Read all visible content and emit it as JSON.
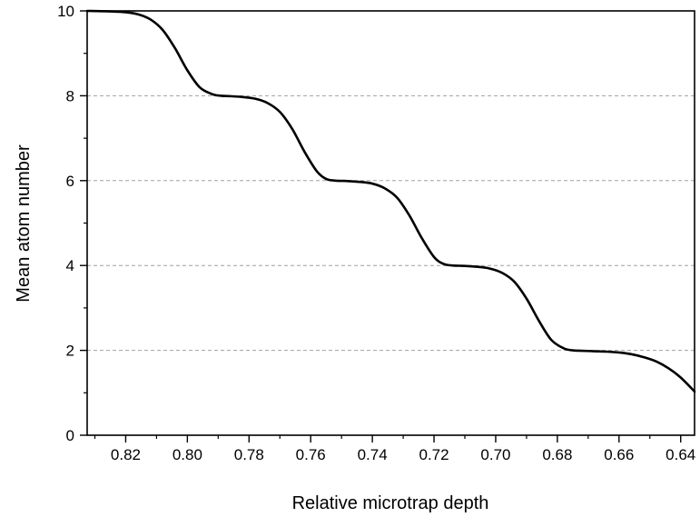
{
  "chart_data": {
    "type": "line",
    "xlabel": "Relative microtrap depth",
    "ylabel": "Mean atom number",
    "xlim": [
      0.8325,
      0.6355
    ],
    "ylim": [
      0,
      10
    ],
    "x_reversed": true,
    "xticks": [
      "0.82",
      "0.80",
      "0.78",
      "0.76",
      "0.74",
      "0.72",
      "0.70",
      "0.68",
      "0.66",
      "0.64"
    ],
    "xtick_values": [
      0.82,
      0.8,
      0.78,
      0.76,
      0.74,
      0.72,
      0.7,
      0.68,
      0.66,
      0.64
    ],
    "yticks": [
      "0",
      "2",
      "4",
      "6",
      "8",
      "10"
    ],
    "ytick_values": [
      0,
      2,
      4,
      6,
      8,
      10
    ],
    "grid": {
      "y_dashed_at": [
        2,
        4,
        6,
        8
      ]
    },
    "legend": "none",
    "line_color": "#000000",
    "grid_color": "#a0a0a0",
    "series": [
      {
        "x": [
          0.8325,
          0.826,
          0.82,
          0.816,
          0.812,
          0.808,
          0.804,
          0.8,
          0.796,
          0.792,
          0.789,
          0.786,
          0.782,
          0.778,
          0.774,
          0.77,
          0.766,
          0.762,
          0.758,
          0.755,
          0.752,
          0.748,
          0.744,
          0.74,
          0.736,
          0.732,
          0.728,
          0.724,
          0.72,
          0.717,
          0.714,
          0.71,
          0.706,
          0.702,
          0.698,
          0.694,
          0.69,
          0.686,
          0.682,
          0.678,
          0.675,
          0.672,
          0.668,
          0.664,
          0.66,
          0.656,
          0.652,
          0.648,
          0.644,
          0.64,
          0.6355
        ],
        "y": [
          10.0,
          9.99,
          9.97,
          9.92,
          9.8,
          9.55,
          9.12,
          8.6,
          8.2,
          8.04,
          8.0,
          7.99,
          7.97,
          7.93,
          7.83,
          7.62,
          7.22,
          6.68,
          6.22,
          6.04,
          6.0,
          5.99,
          5.97,
          5.93,
          5.82,
          5.6,
          5.18,
          4.65,
          4.2,
          4.04,
          4.0,
          3.99,
          3.97,
          3.93,
          3.83,
          3.62,
          3.22,
          2.7,
          2.25,
          2.05,
          2.0,
          1.99,
          1.98,
          1.97,
          1.95,
          1.91,
          1.84,
          1.74,
          1.58,
          1.36,
          1.03
        ]
      }
    ]
  }
}
